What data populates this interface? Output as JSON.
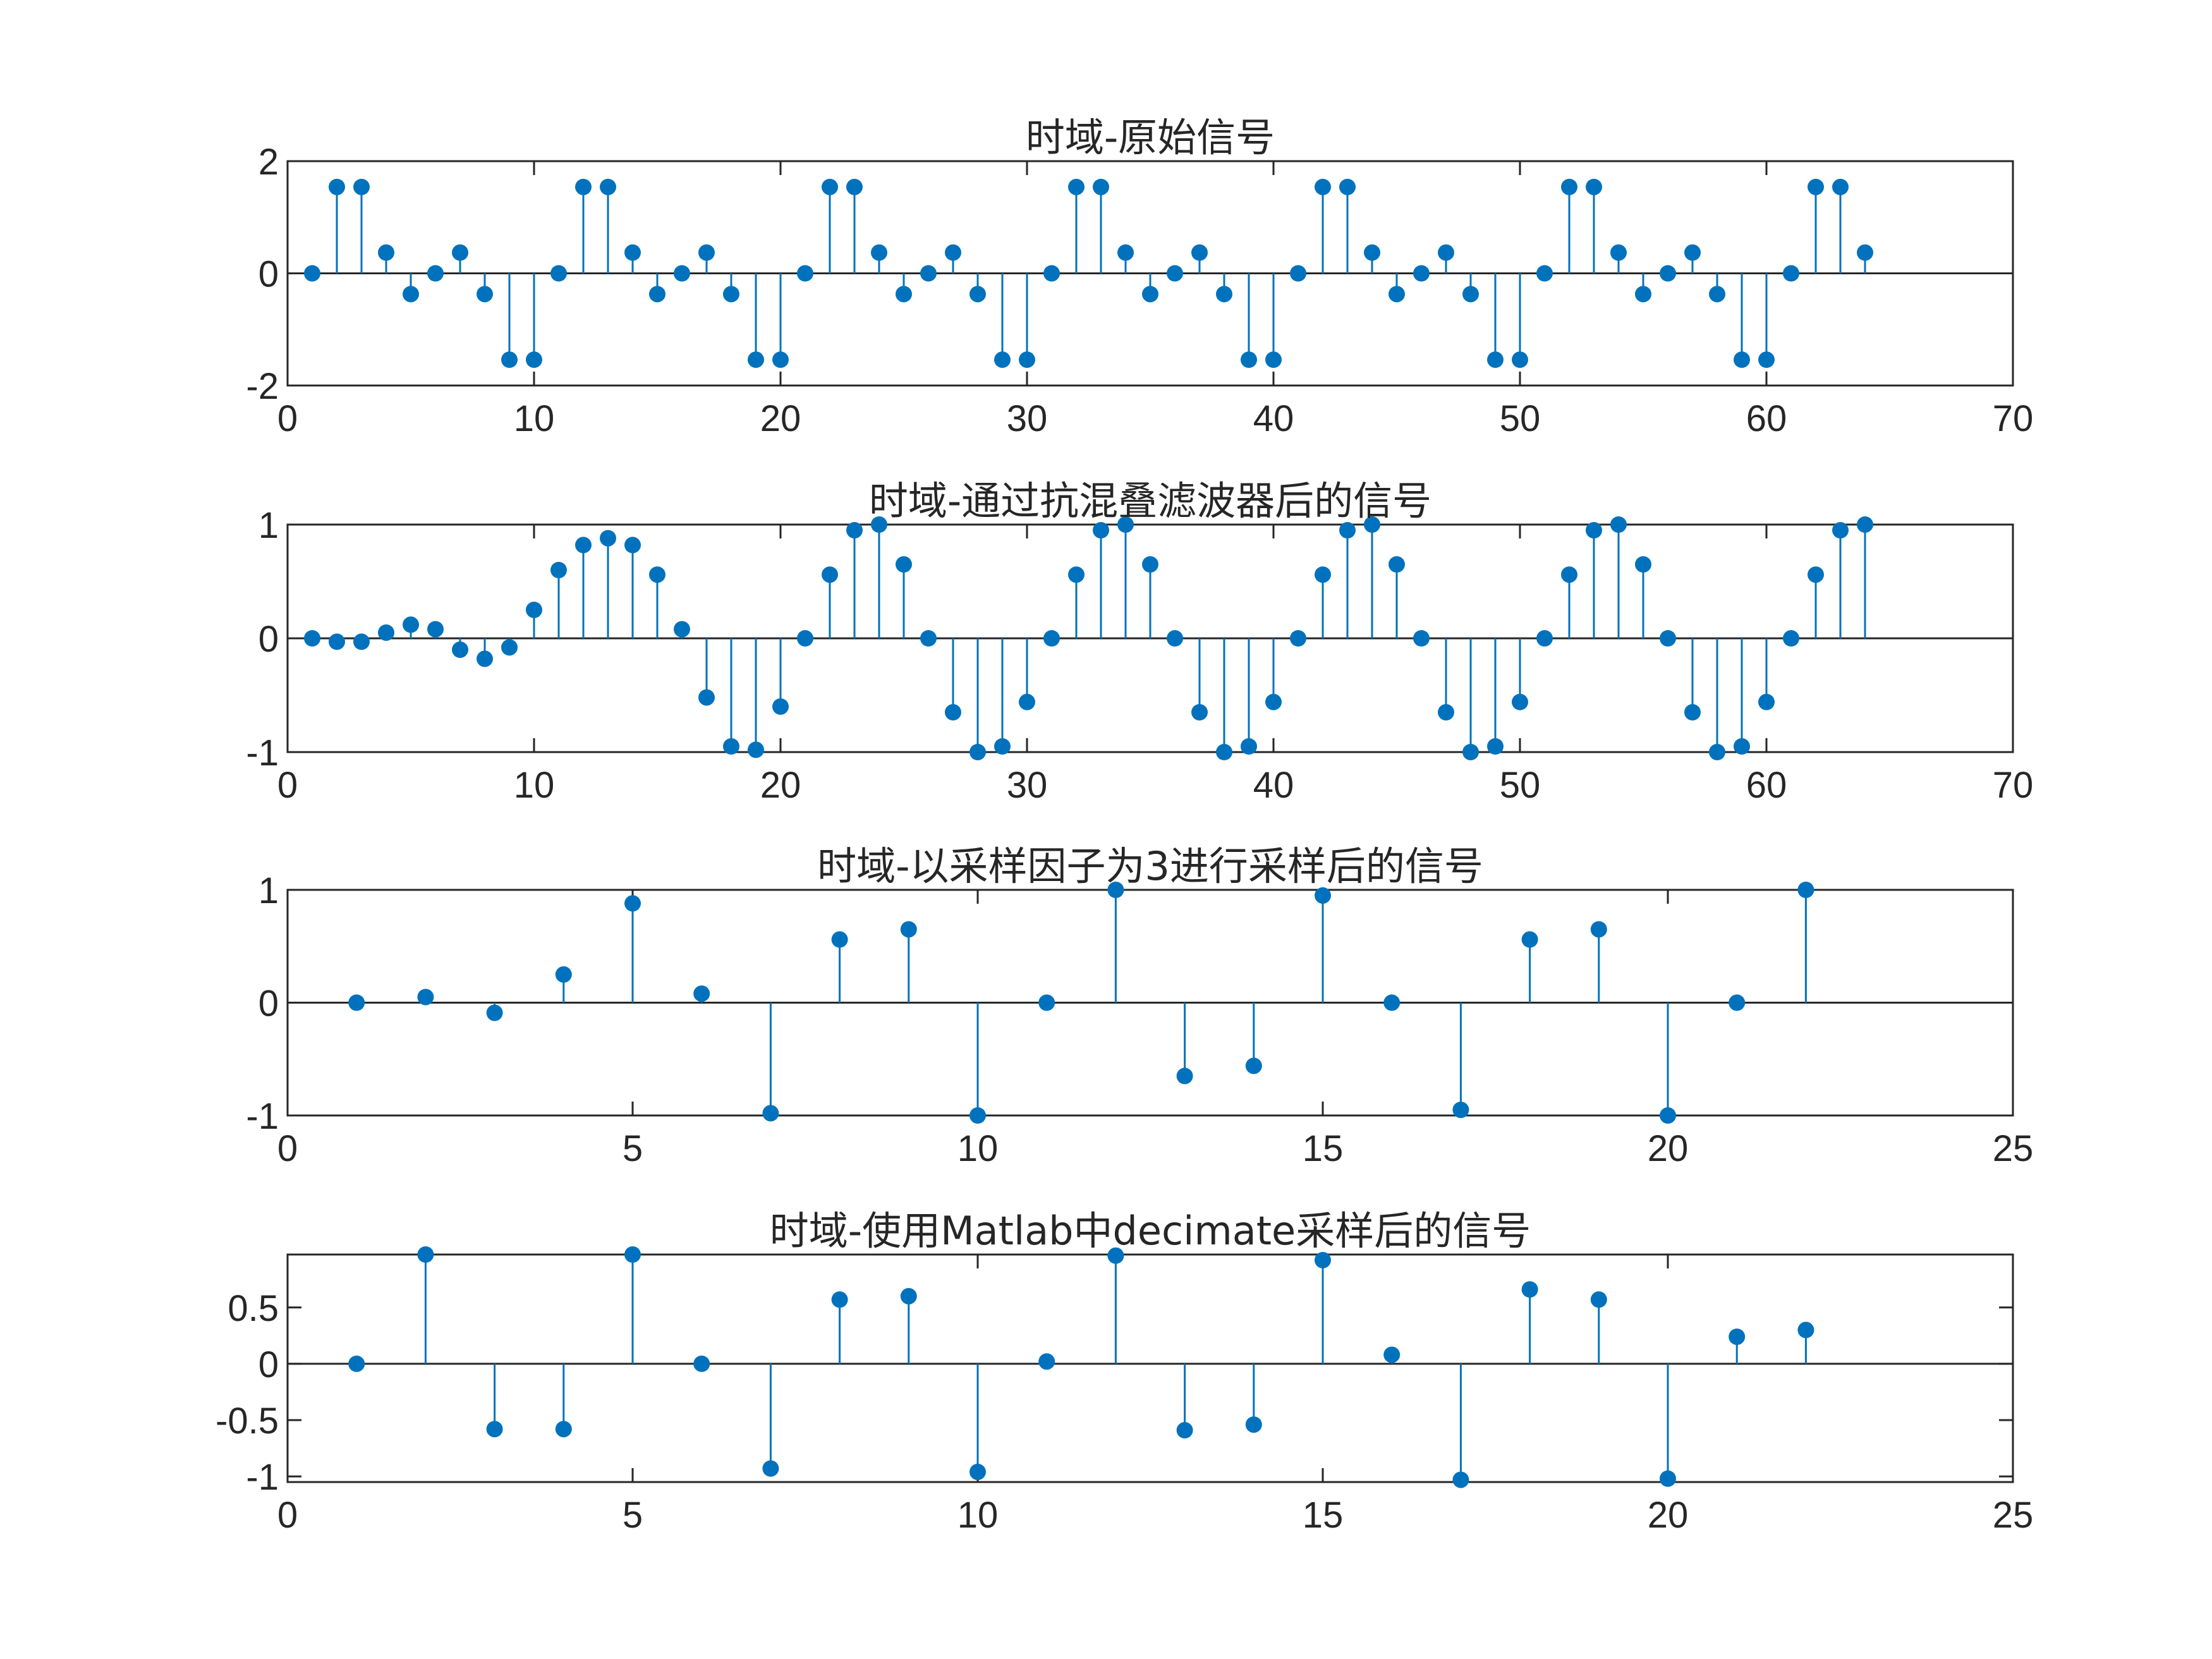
{
  "figure": {
    "background": "#ffffff"
  },
  "style": {
    "stem_color": "#0072BD",
    "axis_color": "#262626"
  },
  "chart_data": [
    {
      "type": "stem",
      "title": "时域-原始信号",
      "xlim": [
        0,
        70
      ],
      "ylim": [
        -2,
        2
      ],
      "xticks": [
        0,
        10,
        20,
        30,
        40,
        50,
        60,
        70
      ],
      "yticks": [
        -2,
        0,
        2
      ],
      "ytick_labels": [
        "-2",
        "0",
        "2"
      ],
      "grid": false,
      "baseline": 0,
      "x": [
        1,
        2,
        3,
        4,
        5,
        6,
        7,
        8,
        9,
        10,
        11,
        12,
        13,
        14,
        15,
        16,
        17,
        18,
        19,
        20,
        21,
        22,
        23,
        24,
        25,
        26,
        27,
        28,
        29,
        30,
        31,
        32,
        33,
        34,
        35,
        36,
        37,
        38,
        39,
        40,
        41,
        42,
        43,
        44,
        45,
        46,
        47,
        48,
        49,
        50,
        51,
        52,
        53,
        54,
        55,
        56,
        57,
        58,
        59,
        60,
        61,
        62,
        63,
        64
      ],
      "values": [
        0,
        1.54,
        1.54,
        0.37,
        -0.37,
        0,
        0.37,
        -0.37,
        -1.54,
        -1.54,
        0,
        1.54,
        1.54,
        0.37,
        -0.37,
        0,
        0.37,
        -0.37,
        -1.54,
        -1.54,
        0,
        1.54,
        1.54,
        0.37,
        -0.37,
        0,
        0.37,
        -0.37,
        -1.54,
        -1.54,
        0,
        1.54,
        1.54,
        0.37,
        -0.37,
        0,
        0.37,
        -0.37,
        -1.54,
        -1.54,
        0,
        1.54,
        1.54,
        0.37,
        -0.37,
        0,
        0.37,
        -0.37,
        -1.54,
        -1.54,
        0,
        1.54,
        1.54,
        0.37,
        -0.37,
        0,
        0.37,
        -0.37,
        -1.54,
        -1.54,
        0,
        1.54,
        1.54,
        0.37
      ]
    },
    {
      "type": "stem",
      "title": "时域-通过抗混叠滤波器后的信号",
      "xlim": [
        0,
        70
      ],
      "ylim": [
        -1,
        1
      ],
      "xticks": [
        0,
        10,
        20,
        30,
        40,
        50,
        60,
        70
      ],
      "yticks": [
        -1,
        0,
        1
      ],
      "ytick_labels": [
        "-1",
        "0",
        "1"
      ],
      "grid": false,
      "baseline": 0,
      "x": [
        1,
        2,
        3,
        4,
        5,
        6,
        7,
        8,
        9,
        10,
        11,
        12,
        13,
        14,
        15,
        16,
        17,
        18,
        19,
        20,
        21,
        22,
        23,
        24,
        25,
        26,
        27,
        28,
        29,
        30,
        31,
        32,
        33,
        34,
        35,
        36,
        37,
        38,
        39,
        40,
        41,
        42,
        43,
        44,
        45,
        46,
        47,
        48,
        49,
        50,
        51,
        52,
        53,
        54,
        55,
        56,
        57,
        58,
        59,
        60,
        61,
        62,
        63,
        64
      ],
      "values": [
        0,
        -0.03,
        -0.03,
        0.05,
        0.12,
        0.08,
        -0.1,
        -0.18,
        -0.08,
        0.25,
        0.6,
        0.82,
        0.88,
        0.82,
        0.56,
        0.08,
        -0.52,
        -0.95,
        -0.98,
        -0.6,
        0,
        0.56,
        0.95,
        1.0,
        0.65,
        0,
        -0.65,
        -1.0,
        -0.95,
        -0.56,
        0,
        0.56,
        0.95,
        1.0,
        0.65,
        0,
        -0.65,
        -1.0,
        -0.95,
        -0.56,
        0,
        0.56,
        0.95,
        1.0,
        0.65,
        0,
        -0.65,
        -1.0,
        -0.95,
        -0.56,
        0,
        0.56,
        0.95,
        1.0,
        0.65,
        0,
        -0.65,
        -1.0,
        -0.95,
        -0.56,
        0,
        0.56,
        0.95,
        1.0
      ]
    },
    {
      "type": "stem",
      "title": "时域-以采样因子为3进行采样后的信号",
      "xlim": [
        0,
        25
      ],
      "ylim": [
        -1,
        1
      ],
      "xticks": [
        0,
        5,
        10,
        15,
        20,
        25
      ],
      "yticks": [
        -1,
        0,
        1
      ],
      "ytick_labels": [
        "-1",
        "0",
        "1"
      ],
      "grid": false,
      "baseline": 0,
      "x": [
        1,
        2,
        3,
        4,
        5,
        6,
        7,
        8,
        9,
        10,
        11,
        12,
        13,
        14,
        15,
        16,
        17,
        18,
        19,
        20,
        21,
        22
      ],
      "values": [
        0,
        0.05,
        -0.09,
        0.25,
        0.88,
        0.08,
        -0.98,
        0.56,
        0.65,
        -1.0,
        0,
        1.0,
        -0.65,
        -0.56,
        0.95,
        0,
        -0.95,
        0.56,
        0.65,
        -1.0,
        0,
        1.0
      ]
    },
    {
      "type": "stem",
      "title": "时域-使用Matlab中decimate采样后的信号",
      "xlim": [
        0,
        25
      ],
      "ylim": [
        -1.05,
        0.97
      ],
      "xticks": [
        0,
        5,
        10,
        15,
        20,
        25
      ],
      "yticks": [
        -1,
        -0.5,
        0,
        0.5
      ],
      "ytick_labels": [
        "-1",
        "-0.5",
        "0",
        "0.5"
      ],
      "grid": false,
      "baseline": 0,
      "x": [
        1,
        2,
        3,
        4,
        5,
        6,
        7,
        8,
        9,
        10,
        11,
        12,
        13,
        14,
        15,
        16,
        17,
        18,
        19,
        20,
        21,
        22
      ],
      "values": [
        0,
        0.97,
        -0.58,
        -0.58,
        0.97,
        0,
        -0.93,
        0.57,
        0.6,
        -0.96,
        0.02,
        0.96,
        -0.59,
        -0.54,
        0.92,
        0.08,
        -1.03,
        0.66,
        0.57,
        -1.02,
        0.24,
        0.3
      ]
    }
  ]
}
